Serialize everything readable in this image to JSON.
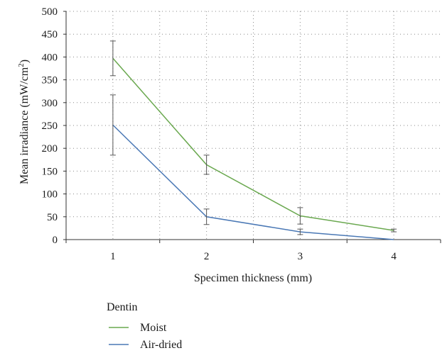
{
  "chart_data": {
    "type": "line",
    "xlabel": "Specimen thickness (mm)",
    "ylabel_main": "Mean irradiance (mW/cm",
    "ylabel_sup": "2",
    "ylabel_close": ")",
    "x": [
      1,
      2,
      3,
      4
    ],
    "x_tick_labels": [
      "1",
      "2",
      "3",
      "4"
    ],
    "y_ticks": [
      0,
      50,
      100,
      150,
      200,
      250,
      300,
      350,
      400,
      450,
      500
    ],
    "y_tick_labels": [
      "0",
      "50",
      "100",
      "150",
      "200",
      "250",
      "300",
      "350",
      "400",
      "450",
      "500"
    ],
    "ylim": [
      0,
      500
    ],
    "xlim": [
      0.5,
      4.5
    ],
    "grid": "dotted",
    "legend_title": "Dentin",
    "legend_placement": "bottom-left",
    "series": [
      {
        "name": "Moist",
        "color": "#6aa84f",
        "values": [
          397,
          164,
          52,
          20
        ],
        "error": [
          38,
          21,
          18,
          3
        ]
      },
      {
        "name": "Air-dried",
        "color": "#4a78b5",
        "values": [
          251,
          50,
          17,
          0
        ],
        "error": [
          66,
          17,
          6,
          0
        ]
      }
    ]
  }
}
